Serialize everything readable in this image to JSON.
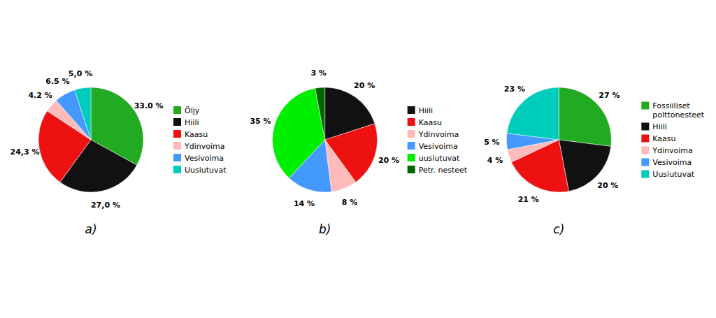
{
  "chart_data": [
    {
      "type": "pie",
      "title": "a)",
      "categories": [
        "Öljy",
        "Hiili",
        "Kaasu",
        "Ydinvoima",
        "Vesivoima",
        "Uusiutuvat"
      ],
      "values": [
        33.0,
        27.0,
        24.3,
        4.2,
        6.5,
        5.0
      ],
      "value_labels": [
        "33.0 %",
        "27,0 %",
        "24,3 %",
        "4.2 %",
        "6.5 %",
        "5,0 %"
      ],
      "colors": [
        "#22aa22",
        "#111111",
        "#ee1111",
        "#ffbbbb",
        "#4499ff",
        "#00ccbb"
      ],
      "data_labels": true,
      "legend": "right"
    },
    {
      "type": "pie",
      "title": "b)",
      "categories": [
        "Hiili",
        "Kaasu",
        "Ydinvoima",
        "Vesivoima",
        "uusiutuvat",
        "Petr. nesteet"
      ],
      "values": [
        20,
        20,
        8,
        14,
        35,
        3
      ],
      "value_labels": [
        "20 %",
        "20 %",
        "8 %",
        "14 %",
        "35 %",
        "3 %"
      ],
      "colors": [
        "#111111",
        "#ee1111",
        "#ffbbbb",
        "#4499ff",
        "#00ee00",
        "#006600"
      ],
      "data_labels": true,
      "legend": "right"
    },
    {
      "type": "pie",
      "title": "c)",
      "categories": [
        "Fossiiliset\npolttonesteet",
        "Hiili",
        "Kaasu",
        "Ydinvoima",
        "Vesivoima",
        "Uusiutuvat"
      ],
      "values": [
        27,
        20,
        21,
        4,
        5,
        23
      ],
      "value_labels": [
        "27 %",
        "20 %",
        "21 %",
        "4 %",
        "5 %",
        "23 %"
      ],
      "colors": [
        "#22aa22",
        "#111111",
        "#ee1111",
        "#ffbbbb",
        "#4499ff",
        "#00ccbb"
      ],
      "data_labels": true,
      "legend": "right"
    }
  ]
}
